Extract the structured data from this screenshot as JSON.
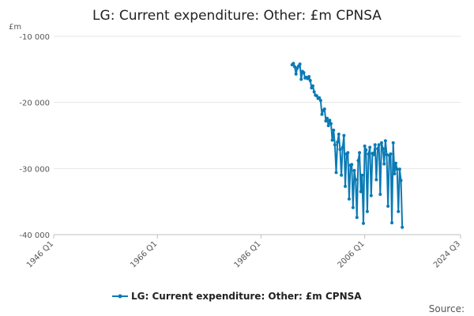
{
  "chart_data": {
    "type": "line",
    "title": "LG: Current expenditure: Other: £m CPNSA",
    "ylabel": "£m",
    "xlabel": "",
    "ylim": [
      -40000,
      -10000
    ],
    "y_ticks": [
      -10000,
      -20000,
      -30000,
      -40000
    ],
    "y_tick_labels": [
      "-10 000",
      "-20 000",
      "-30 000",
      "-40 000"
    ],
    "x_range": [
      "1946 Q1",
      "2024 Q3"
    ],
    "x_tick_labels": [
      "1946 Q1",
      "1966 Q1",
      "1986 Q1",
      "2006 Q1",
      "2024 Q3"
    ],
    "legend": [
      "LG: Current expenditure: Other: £m CPNSA"
    ],
    "legend_position": "bottom-center",
    "grid": true,
    "color": "#0a7ab5",
    "series": [
      {
        "name": "LG: Current expenditure: Other: £m CPNSA",
        "start": "1992 Q1",
        "frequency": "quarterly",
        "values": [
          -14300,
          -14100,
          -14600,
          -15700,
          -14800,
          -14500,
          -14200,
          -16500,
          -15300,
          -15500,
          -16300,
          -16200,
          -16400,
          -16100,
          -16700,
          -17800,
          -17500,
          -18400,
          -18900,
          -19000,
          -19400,
          -19300,
          -19700,
          -21800,
          -21200,
          -21000,
          -22800,
          -22400,
          -23500,
          -22700,
          -23200,
          -25700,
          -24200,
          -26400,
          -30600,
          -26000,
          -24800,
          -27100,
          -31000,
          -26800,
          -25000,
          -32700,
          -27800,
          -27600,
          -34600,
          -29500,
          -29400,
          -35900,
          -30300,
          -31700,
          -37400,
          -28800,
          -27600,
          -33500,
          -31000,
          -38300,
          -26600,
          -27200,
          -36500,
          -27800,
          -26800,
          -34100,
          -27700,
          -27900,
          -26400,
          -31700,
          -27000,
          -26400,
          -33900,
          -26100,
          -27000,
          -29300,
          -25800,
          -27900,
          -35700,
          -28000,
          -27800,
          -38200,
          -26100,
          -30800,
          -29200,
          -30100,
          -36500,
          -30100,
          -31800,
          -38900
        ]
      }
    ]
  },
  "source_label": "Source:"
}
